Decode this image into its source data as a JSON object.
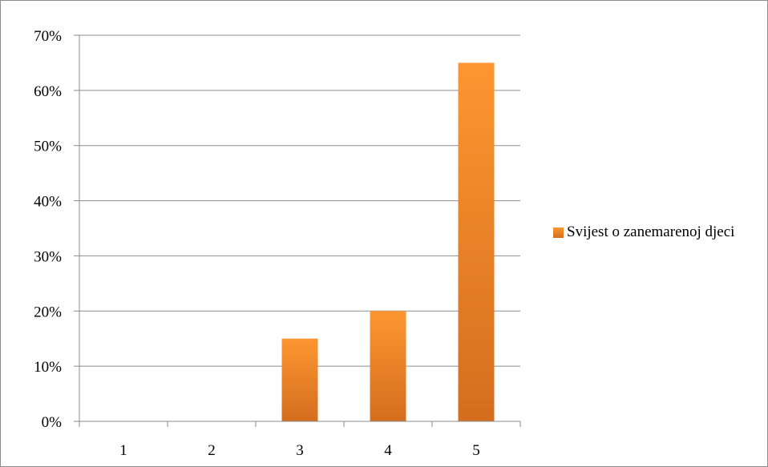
{
  "chart_data": {
    "type": "bar",
    "categories": [
      "1",
      "2",
      "3",
      "4",
      "5"
    ],
    "series": [
      {
        "name": "Svijest o zanemarenoj djeci",
        "values": [
          0,
          0,
          15,
          20,
          65
        ]
      }
    ],
    "y_ticks": [
      "0%",
      "10%",
      "20%",
      "30%",
      "40%",
      "50%",
      "60%",
      "70%"
    ],
    "ylim": [
      0,
      70
    ],
    "y_unit": "percent",
    "grid": true,
    "legend_position": "right",
    "colors": {
      "bar_top": "#fd9630",
      "bar_bottom": "#d46e1e",
      "grid": "#8c8c8c"
    }
  }
}
